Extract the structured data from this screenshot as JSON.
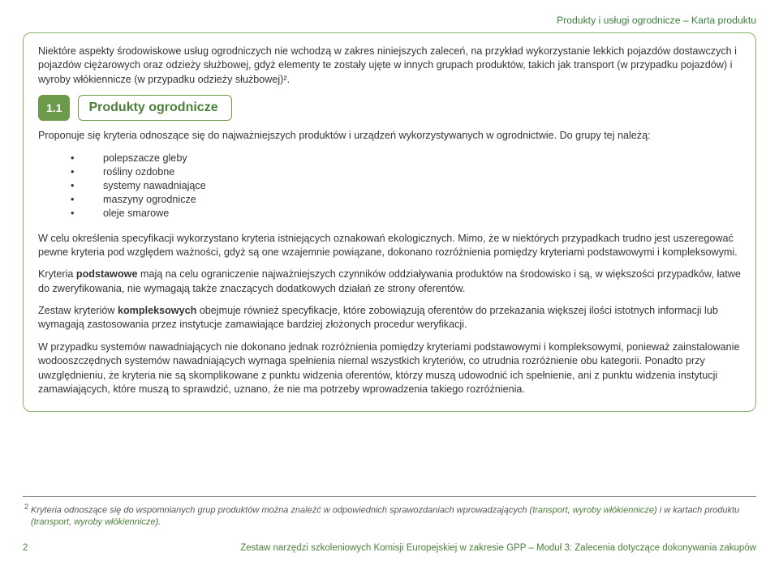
{
  "header": {
    "breadcrumb": "Produkty i usługi ogrodnicze – Karta produktu"
  },
  "intro_blocks": [
    "Niektóre aspekty środowiskowe usług ogrodniczych nie wchodzą w zakres niniejszych zaleceń, na przykład wykorzystanie lekkich pojazdów dostawczych i pojazdów ciężarowych oraz odzieży służbowej, gdyż elementy te zostały ujęte w innych grupach produktów, takich jak transport (w przypadku pojazdów) i wyroby włókiennicze (w przypadku odzieży służbowej)²."
  ],
  "section": {
    "number": "1.1",
    "title": "Produkty ogrodnicze",
    "lead": "Proponuje się kryteria odnoszące się do najważniejszych produktów i urządzeń wykorzystywanych w ogrodnictwie. Do grupy tej należą:",
    "bullets": [
      "polepszacze gleby",
      "rośliny ozdobne",
      "systemy nawadniające",
      "maszyny ogrodnicze",
      "oleje smarowe"
    ],
    "paragraphs": [
      {
        "pre": "W celu określenia specyfikacji wykorzystano kryteria istniejących oznakowań ekologicznych. Mimo, że w niektórych przypadkach trudno jest uszeregować pewne kryteria pod względem ważności, gdyż są one wzajemnie powiązane, dokonano rozróżnienia pomiędzy kryteriami podstawowymi i kompleksowymi."
      },
      {
        "pre": "Kryteria ",
        "bold": "podstawowe",
        "post": " mają na celu ograniczenie najważniejszych czynników oddziaływania produktów na środowisko i są, w większości przypadków, łatwe do zweryfikowania, nie wymagają także znaczących dodatkowych działań ze strony oferentów."
      },
      {
        "pre": "Zestaw kryteriów ",
        "bold": "kompleksowych",
        "post": " obejmuje również specyfikacje, które zobowiązują oferentów do przekazania większej ilości istotnych informacji lub wymagają zastosowania przez instytucje zamawiające bardziej złożonych procedur weryfikacji."
      },
      {
        "pre": "W przypadku systemów nawadniających nie dokonano jednak rozróżnienia pomiędzy kryteriami podstawowymi i kompleksowymi, ponieważ zainstalowanie wodooszczędnych systemów nawadniających wymaga spełnienia niemal wszystkich kryteriów, co utrudnia rozróżnienie obu kategorii. Ponadto przy uwzględnieniu, że kryteria nie są skomplikowane z punktu widzenia oferentów, którzy muszą udowodnić ich spełnienie, ani z punktu widzenia instytucji zamawiających, które muszą to sprawdzić, uznano, że nie ma potrzeby wprowadzenia takiego rozróżnienia."
      }
    ]
  },
  "footnote": {
    "num": "2",
    "pre": "Kryteria odnoszące się do wspomnianych grup produktów można znaleźć w odpowiednich sprawozdaniach wprowadzających (",
    "link1": "transport",
    "sep1": ", ",
    "link2": "wyroby włókiennicze",
    "mid": ") i w kartach produktu (",
    "link3": "transport",
    "sep2": ", ",
    "link4": "wyroby włókiennicze",
    "post": ")."
  },
  "footer": {
    "page": "2",
    "right": "Zestaw narzędzi szkoleniowych Komisji Europejskiej w zakresie GPP – Moduł 3: Zalecenia dotyczące dokonywania zakupów"
  }
}
